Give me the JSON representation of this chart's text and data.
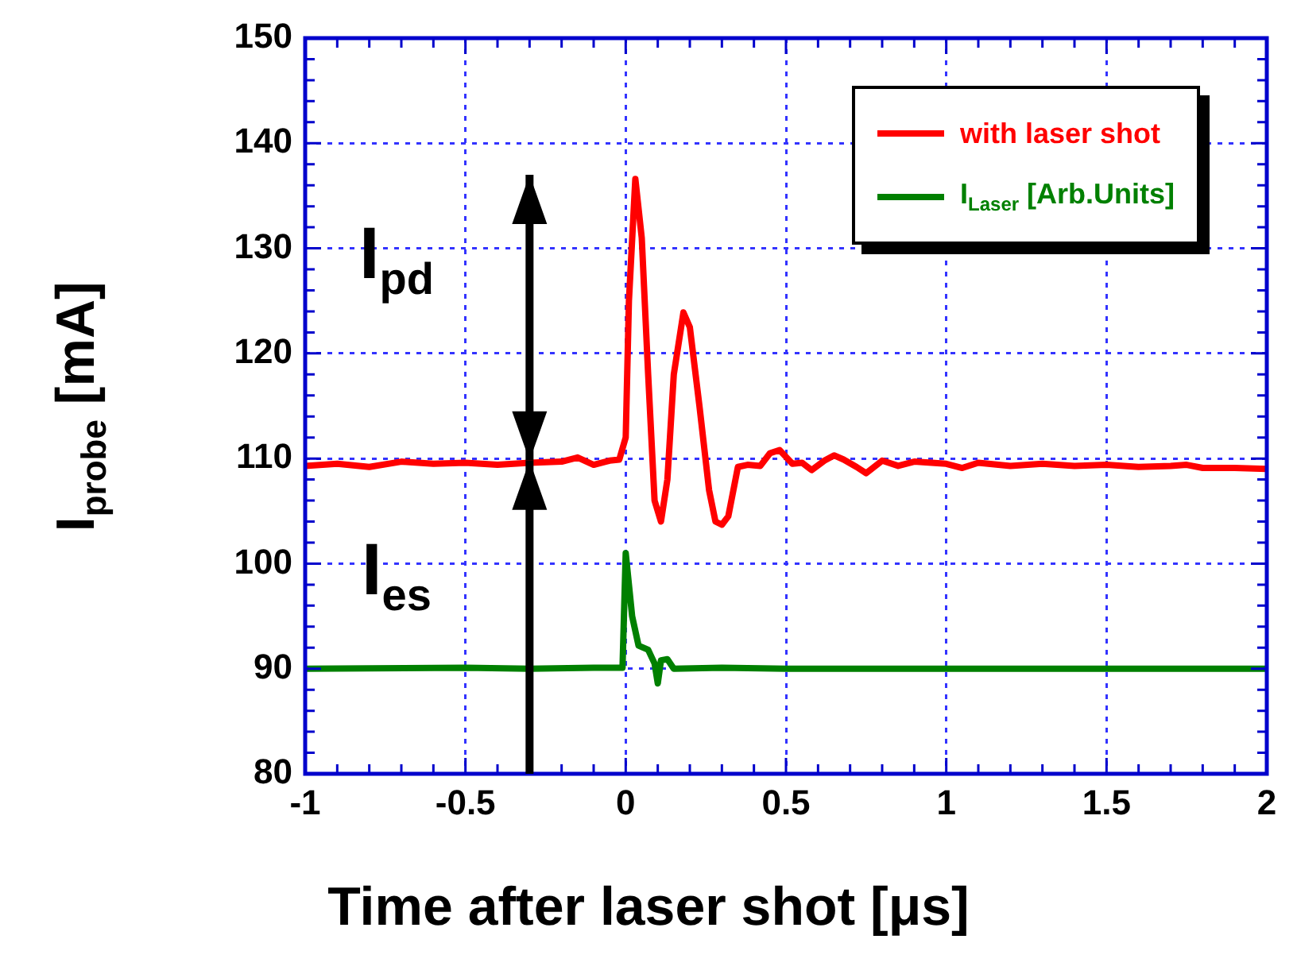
{
  "chart_data": {
    "type": "line",
    "xlabel": "Time after laser shot [μs]",
    "ylabel": "I$_{probe}$ [mA]",
    "xlim": [
      -1,
      2
    ],
    "xticks": [
      -1,
      {
        "value": -0.9,
        "label": null
      },
      {
        "value": -0.8,
        "label": null
      },
      {
        "value": -0.7,
        "label": null
      },
      {
        "value": -0.6,
        "label": null
      },
      -0.5,
      {
        "value": -0.4,
        "label": null
      },
      {
        "value": -0.3,
        "label": null
      },
      {
        "value": -0.2,
        "label": null
      },
      {
        "value": -0.1,
        "label": null
      },
      0,
      {
        "value": 0.1,
        "label": null
      },
      {
        "value": 0.2,
        "label": null
      },
      {
        "value": 0.3,
        "label": null
      },
      {
        "value": 0.4,
        "label": null
      },
      0.5,
      {
        "value": 0.6,
        "label": null
      },
      {
        "value": 0.7,
        "label": null
      },
      {
        "value": 0.8,
        "label": null
      },
      {
        "value": 0.9,
        "label": null
      },
      1,
      {
        "value": 1.1,
        "label": null
      },
      {
        "value": 1.2,
        "label": null
      },
      {
        "value": 1.3,
        "label": null
      },
      {
        "value": 1.4,
        "label": null
      },
      1.5,
      {
        "value": 1.6,
        "label": null
      },
      {
        "value": 1.7,
        "label": null
      },
      {
        "value": 1.8,
        "label": null
      },
      {
        "value": 1.9,
        "label": null
      },
      2
    ],
    "ylim": [
      80,
      150
    ],
    "yticks": [
      80,
      {
        "value": 82,
        "label": null
      },
      {
        "value": 84,
        "label": null
      },
      {
        "value": 86,
        "label": null
      },
      {
        "value": 88,
        "label": null
      },
      90,
      {
        "value": 92,
        "label": null
      },
      {
        "value": 94,
        "label": null
      },
      {
        "value": 96,
        "label": null
      },
      {
        "value": 98,
        "label": null
      },
      100,
      {
        "value": 102,
        "label": null
      },
      {
        "value": 104,
        "label": null
      },
      {
        "value": 106,
        "label": null
      },
      {
        "value": 108,
        "label": null
      },
      110,
      {
        "value": 112,
        "label": null
      },
      {
        "value": 114,
        "label": null
      },
      {
        "value": 116,
        "label": null
      },
      {
        "value": 118,
        "label": null
      },
      120,
      {
        "value": 122,
        "label": null
      },
      {
        "value": 124,
        "label": null
      },
      {
        "value": 126,
        "label": null
      },
      {
        "value": 128,
        "label": null
      },
      130,
      {
        "value": 132,
        "label": null
      },
      {
        "value": 134,
        "label": null
      },
      {
        "value": 136,
        "label": null
      },
      {
        "value": 138,
        "label": null
      },
      140,
      {
        "value": 142,
        "label": null
      },
      {
        "value": 144,
        "label": null
      },
      {
        "value": 146,
        "label": null
      },
      {
        "value": 148,
        "label": null
      },
      150
    ],
    "grid": true,
    "legend": "top right",
    "marker": "none",
    "line_style": "solid",
    "series": [
      {
        "name": "with laser shot",
        "color": "#ff0000",
        "x": [
          -1,
          -0.9,
          -0.8,
          -0.7,
          -0.6,
          -0.5,
          -0.4,
          -0.3,
          -0.2,
          -0.15,
          -0.1,
          -0.05,
          -0.02,
          0,
          0.01,
          0.03,
          0.05,
          0.07,
          0.09,
          0.11,
          0.13,
          0.15,
          0.18,
          0.2,
          0.23,
          0.26,
          0.28,
          0.3,
          0.32,
          0.35,
          0.38,
          0.42,
          0.45,
          0.48,
          0.52,
          0.55,
          0.58,
          0.62,
          0.65,
          0.68,
          0.72,
          0.75,
          0.8,
          0.85,
          0.9,
          1,
          1.05,
          1.1,
          1.2,
          1.3,
          1.4,
          1.5,
          1.6,
          1.7,
          1.75,
          1.8,
          1.9,
          2
        ],
        "values": [
          109.3,
          109.5,
          109.2,
          109.7,
          109.5,
          109.6,
          109.4,
          109.6,
          109.7,
          110.1,
          109.4,
          109.8,
          109.9,
          112,
          125,
          136.6,
          131,
          118,
          106,
          104,
          108,
          118,
          123.9,
          122.5,
          115,
          107,
          104,
          103.7,
          104.5,
          109.2,
          109.4,
          109.3,
          110.5,
          110.8,
          109.5,
          109.6,
          108.9,
          109.8,
          110.3,
          109.9,
          109.2,
          108.6,
          109.8,
          109.3,
          109.7,
          109.5,
          109.1,
          109.6,
          109.3,
          109.5,
          109.3,
          109.4,
          109.2,
          109.3,
          109.4,
          109.1,
          109.1,
          109
        ]
      },
      {
        "name": "I$_{Laser}$ [Arb.Units]",
        "color": "#008000",
        "x": [
          -1,
          -0.5,
          -0.3,
          -0.1,
          -0.01,
          0,
          0.02,
          0.04,
          0.07,
          0.09,
          0.1,
          0.11,
          0.13,
          0.15,
          0.3,
          0.5,
          1,
          1.5,
          2
        ],
        "values": [
          90,
          90.1,
          90,
          90.1,
          90.1,
          101,
          95,
          92.2,
          91.8,
          90.5,
          88.6,
          90.8,
          90.9,
          90,
          90.1,
          90,
          90,
          90,
          90
        ]
      }
    ],
    "annotations": [
      "I$_{pd}$",
      "I$_{es}$"
    ]
  }
}
